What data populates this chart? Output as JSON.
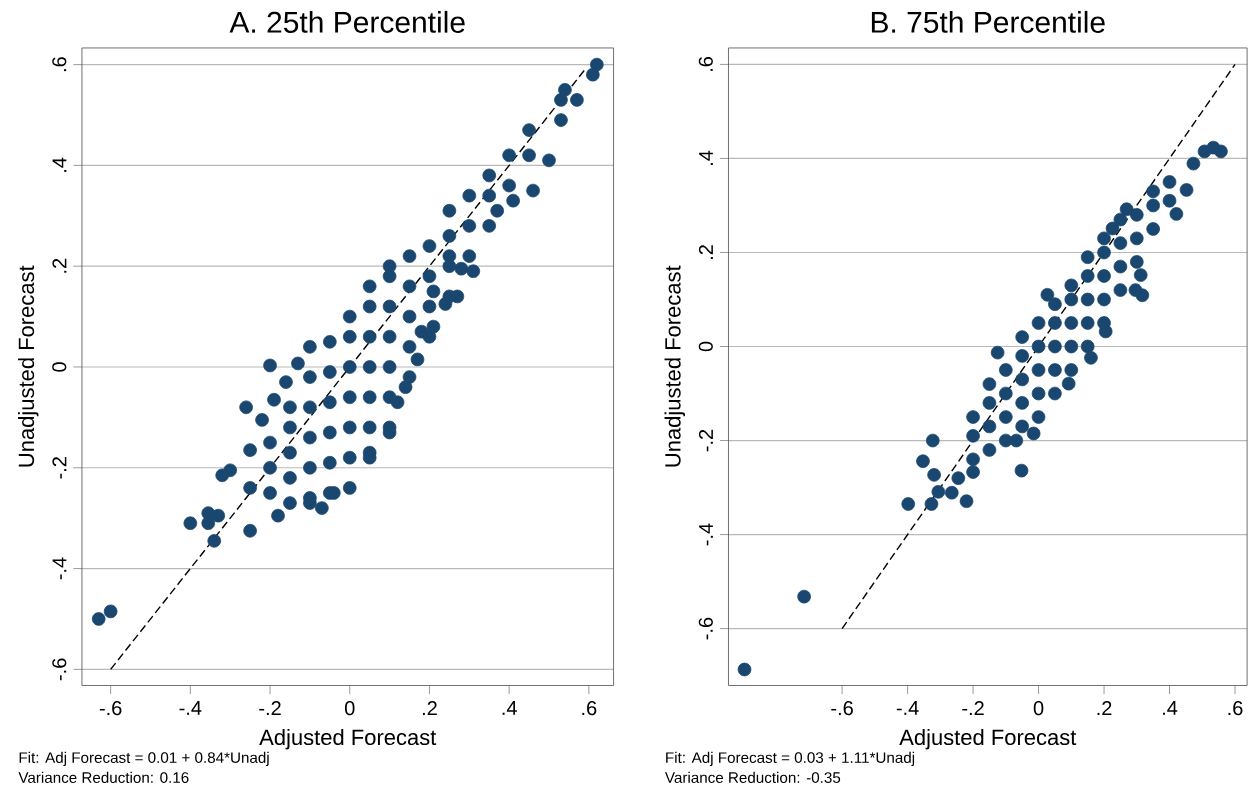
{
  "chart_data": [
    {
      "type": "scatter",
      "title": "A. 25th Percentile",
      "xlabel": "Adjusted Forecast",
      "ylabel": "Unadjusted Forecast",
      "xlim": [
        -0.672,
        0.662
      ],
      "ylim": [
        -0.632,
        0.633
      ],
      "xticks": [
        {
          "value": -0.6,
          "label": "-.6"
        },
        {
          "value": -0.4,
          "label": "-.4"
        },
        {
          "value": -0.2,
          "label": "-.2"
        },
        0,
        {
          "value": 0.2,
          "label": ".2"
        },
        {
          "value": 0.4,
          "label": ".4"
        },
        {
          "value": 0.6,
          "label": ".6"
        }
      ],
      "yticks": [
        {
          "value": -0.6,
          "label": "-.6"
        },
        {
          "value": -0.4,
          "label": "-.4"
        },
        {
          "value": -0.2,
          "label": "-.2"
        },
        0,
        {
          "value": 0.2,
          "label": ".2"
        },
        {
          "value": 0.4,
          "label": ".4"
        },
        {
          "value": 0.6,
          "label": ".6"
        }
      ],
      "grid": "y",
      "marker": "circle",
      "annotations": [
        "Fit: Adj Forecast = 0.01 + 0.84*Unadj",
        "Variance Reduction: 0.16"
      ],
      "series": [
        {
          "color": "#1a476f",
          "x": [
            -0.63,
            -0.6,
            -0.4,
            -0.355,
            -0.355,
            -0.33,
            -0.34,
            -0.25,
            -0.3,
            -0.32,
            -0.26,
            -0.2,
            -0.13,
            -0.16,
            -0.19,
            -0.22,
            -0.25,
            -0.25,
            -0.18,
            -0.07,
            -0.1,
            -0.04,
            0.62,
            0.61,
            0.54,
            0.57,
            0.53,
            0.53,
            0.5,
            0.46,
            0.41,
            0.37,
            0.31,
            0.28,
            0.27,
            0.24,
            0.21,
            0.21,
            0.18,
            0.17,
            0.14,
            0.12,
            0.1,
            0.05,
            0.25,
            -0.2,
            -0.2,
            -0.2,
            -0.15,
            -0.15,
            -0.15,
            -0.15,
            -0.15,
            -0.1,
            -0.1,
            -0.1,
            -0.1,
            -0.1,
            -0.1,
            -0.05,
            -0.05,
            -0.05,
            -0.05,
            -0.05,
            -0.05,
            0,
            0,
            0,
            0,
            0,
            0,
            0,
            0.05,
            0.05,
            0.05,
            0.05,
            0.05,
            0.05,
            0.05,
            0.1,
            0.1,
            0.1,
            0.1,
            0.1,
            0.1,
            0.1,
            0.15,
            0.15,
            0.15,
            0.15,
            0.15,
            0.2,
            0.2,
            0.2,
            0.2,
            0.25,
            0.25,
            0.25,
            0.25,
            0.3,
            0.3,
            0.3,
            0.35,
            0.35,
            0.35,
            0.4,
            0.4,
            0.45,
            0.45
          ],
          "values": [
            -0.5,
            -0.485,
            -0.31,
            -0.29,
            -0.31,
            -0.295,
            -0.345,
            -0.325,
            -0.205,
            -0.215,
            -0.08,
            0.003,
            0.007,
            -0.03,
            -0.065,
            -0.105,
            -0.165,
            -0.24,
            -0.295,
            -0.28,
            -0.27,
            -0.25,
            0.6,
            0.58,
            0.55,
            0.53,
            0.53,
            0.49,
            0.41,
            0.35,
            0.33,
            0.31,
            0.19,
            0.195,
            0.14,
            0.125,
            0.15,
            0.08,
            0.07,
            0.015,
            -0.04,
            -0.07,
            -0.13,
            -0.17,
            0.22,
            -0.25,
            -0.2,
            -0.15,
            -0.27,
            -0.22,
            -0.17,
            -0.12,
            -0.08,
            -0.26,
            -0.2,
            -0.14,
            -0.08,
            -0.02,
            0.04,
            -0.25,
            -0.19,
            -0.13,
            -0.07,
            -0.01,
            0.05,
            -0.24,
            -0.18,
            -0.12,
            -0.06,
            0,
            0.06,
            0.1,
            -0.18,
            -0.12,
            -0.06,
            0,
            0.06,
            0.12,
            0.16,
            -0.12,
            -0.06,
            0,
            0.06,
            0.12,
            0.18,
            0.2,
            -0.02,
            0.04,
            0.1,
            0.16,
            0.22,
            0.06,
            0.12,
            0.18,
            0.24,
            0.14,
            0.2,
            0.26,
            0.31,
            0.22,
            0.28,
            0.34,
            0.28,
            0.34,
            0.38,
            0.36,
            0.42,
            0.42,
            0.47
          ]
        },
        {
          "type": "line",
          "color": "#000000",
          "line_style": "dashed",
          "marker": "none",
          "x": [
            -0.6,
            0.59
          ],
          "values": [
            -0.6,
            0.59
          ]
        }
      ]
    },
    {
      "type": "scatter",
      "title": "B. 75th Percentile",
      "xlabel": "Adjusted Forecast",
      "ylabel": "Unadjusted Forecast",
      "xlim": [
        -0.947,
        0.637
      ],
      "ylim": [
        -0.721,
        0.635
      ],
      "xticks": [
        {
          "value": -0.6,
          "label": "-.6"
        },
        {
          "value": -0.4,
          "label": "-.4"
        },
        {
          "value": -0.2,
          "label": "-.2"
        },
        0,
        {
          "value": 0.2,
          "label": ".2"
        },
        {
          "value": 0.4,
          "label": ".4"
        },
        {
          "value": 0.6,
          "label": ".6"
        }
      ],
      "yticks": [
        {
          "value": -0.6,
          "label": "-.6"
        },
        {
          "value": -0.4,
          "label": "-.4"
        },
        {
          "value": -0.2,
          "label": "-.2"
        },
        0,
        {
          "value": 0.2,
          "label": ".2"
        },
        {
          "value": 0.4,
          "label": ".4"
        },
        {
          "value": 0.6,
          "label": ".6"
        }
      ],
      "grid": "y",
      "marker": "circle",
      "annotations": [
        "Fit: Adj Forecast = 0.03 + 1.11*Unadj",
        "Variance Reduction: -0.35"
      ],
      "series": [
        {
          "color": "#1a476f",
          "x": [
            -0.898,
            -0.716,
            -0.398,
            -0.327,
            -0.22,
            -0.306,
            -0.265,
            -0.319,
            -0.353,
            -0.323,
            -0.245,
            -0.2,
            -0.052,
            -0.125,
            0.473,
            0.507,
            0.534,
            0.557,
            0.452,
            0.421,
            0.312,
            0.317,
            0.296,
            0.16,
            0.092,
            -0.015,
            -0.068,
            0.205,
            0.226,
            0.269,
            0.027,
            -0.2,
            -0.2,
            -0.2,
            -0.15,
            -0.15,
            -0.15,
            -0.15,
            -0.1,
            -0.1,
            -0.1,
            -0.1,
            -0.05,
            -0.05,
            -0.05,
            -0.05,
            -0.05,
            0,
            0,
            0,
            0,
            0,
            0.05,
            0.05,
            0.05,
            0.05,
            0.05,
            0.1,
            0.1,
            0.1,
            0.1,
            0.1,
            0.15,
            0.15,
            0.15,
            0.15,
            0.15,
            0.2,
            0.2,
            0.2,
            0.2,
            0.2,
            0.25,
            0.25,
            0.25,
            0.25,
            0.3,
            0.3,
            0.3,
            0.35,
            0.35,
            0.35,
            0.4,
            0.4
          ],
          "values": [
            -0.687,
            -0.532,
            -0.335,
            -0.335,
            -0.329,
            -0.309,
            -0.311,
            -0.273,
            -0.244,
            -0.2,
            -0.28,
            -0.267,
            -0.264,
            -0.013,
            0.389,
            0.415,
            0.423,
            0.415,
            0.333,
            0.282,
            0.152,
            0.109,
            0.12,
            -0.024,
            -0.079,
            -0.185,
            -0.2,
            0.032,
            0.251,
            0.292,
            0.11,
            -0.24,
            -0.19,
            -0.15,
            -0.22,
            -0.17,
            -0.12,
            -0.08,
            -0.2,
            -0.15,
            -0.1,
            -0.05,
            -0.17,
            -0.12,
            -0.07,
            -0.02,
            0.02,
            -0.15,
            -0.1,
            -0.05,
            0,
            0.05,
            -0.1,
            -0.05,
            0,
            0.05,
            0.09,
            -0.05,
            0,
            0.05,
            0.1,
            0.13,
            0,
            0.05,
            0.1,
            0.15,
            0.19,
            0.05,
            0.1,
            0.15,
            0.2,
            0.23,
            0.12,
            0.17,
            0.22,
            0.27,
            0.18,
            0.23,
            0.28,
            0.25,
            0.3,
            0.33,
            0.31,
            0.35
          ]
        },
        {
          "type": "line",
          "color": "#000000",
          "line_style": "dashed",
          "marker": "none",
          "x": [
            -0.6,
            0.6
          ],
          "values": [
            -0.6,
            0.6
          ]
        }
      ]
    }
  ]
}
